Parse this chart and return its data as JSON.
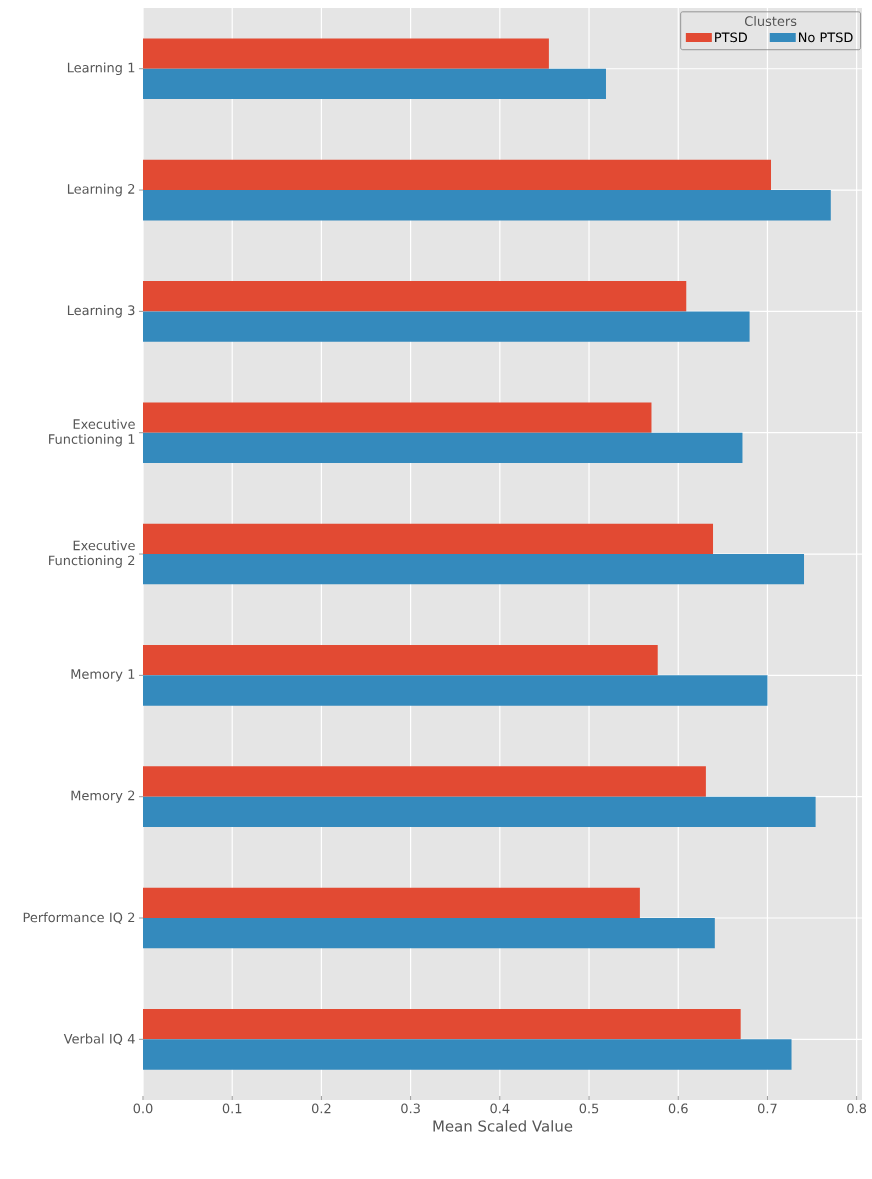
{
  "chart_data": {
    "type": "bar",
    "orientation": "horizontal",
    "xlabel": "Mean Scaled Value",
    "legend_title": "Clusters",
    "categories": [
      "Learning 1",
      "Learning 2",
      "Learning 3",
      "Executive Functioning 1",
      "Executive Functioning 2",
      "Memory 1",
      "Memory 2",
      "Performance IQ 2",
      "Verbal IQ 4"
    ],
    "series": [
      {
        "name": "PTSD",
        "color": "#e24a33",
        "values": [
          0.455,
          0.704,
          0.609,
          0.57,
          0.639,
          0.577,
          0.631,
          0.557,
          0.67
        ]
      },
      {
        "name": "No PTSD",
        "color": "#348abd",
        "values": [
          0.519,
          0.771,
          0.68,
          0.672,
          0.741,
          0.7,
          0.754,
          0.641,
          0.727
        ]
      }
    ],
    "xlim": [
      0,
      0.806
    ],
    "xticks": [
      {
        "value": 0,
        "label": "0.0"
      },
      0.1,
      0.2,
      0.3,
      0.4,
      0.5,
      0.6,
      0.7,
      0.8
    ],
    "grid": true,
    "legend": "top right"
  }
}
